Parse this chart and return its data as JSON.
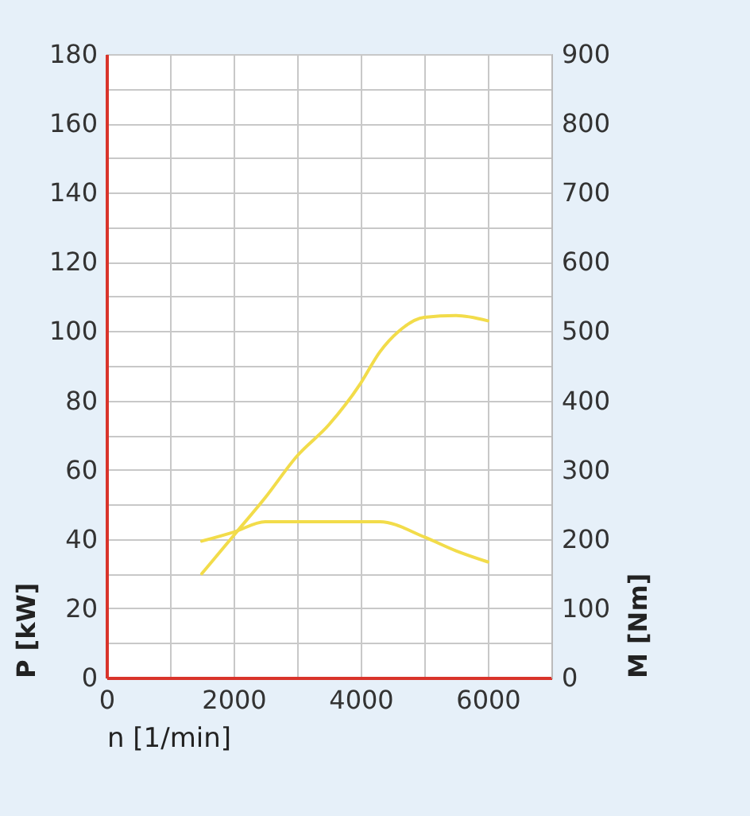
{
  "chart_data": {
    "type": "line",
    "xlabel": "n [1/min]",
    "ylabel": "P [kW]",
    "y2label": "M [Nm]",
    "xlim": [
      0,
      7000
    ],
    "xticks": [
      0,
      {
        "value": 1000,
        "label": null
      },
      2000,
      {
        "value": 3000,
        "label": null
      },
      4000,
      {
        "value": 5000,
        "label": null
      },
      6000,
      {
        "value": 7000,
        "label": null
      }
    ],
    "ylim": [
      0,
      180
    ],
    "yticks": [
      0,
      {
        "value": 10,
        "label": null
      },
      20,
      {
        "value": 30,
        "label": null
      },
      40,
      {
        "value": 50,
        "label": null
      },
      60,
      {
        "value": 70,
        "label": null
      },
      80,
      {
        "value": 90,
        "label": null
      },
      100,
      {
        "value": 110,
        "label": null
      },
      120,
      {
        "value": 130,
        "label": null
      },
      140,
      {
        "value": 150,
        "label": null
      },
      160,
      {
        "value": 170,
        "label": null
      },
      180
    ],
    "y2lim": [
      0,
      900
    ],
    "y2ticks": [
      0,
      100,
      200,
      300,
      400,
      500,
      600,
      700,
      800,
      900
    ],
    "grid": true,
    "line_style": "solid",
    "series": [
      {
        "color": "#f2dc4a",
        "x": [
          1500,
          2000,
          2500,
          3000,
          3500,
          4000,
          4300,
          4600,
          5000,
          5500,
          6000
        ],
        "values": [
          30,
          41,
          52,
          64,
          73,
          85,
          94,
          100,
          104,
          104.5,
          103
        ]
      },
      {
        "color": "#f2dc4a",
        "axis": "y2",
        "x": [
          1500,
          2000,
          2500,
          3000,
          3500,
          4000,
          4300,
          5000,
          5500,
          6000
        ],
        "values": [
          197,
          210,
          225,
          225,
          225,
          225,
          225,
          203,
          183,
          167
        ]
      }
    ]
  }
}
